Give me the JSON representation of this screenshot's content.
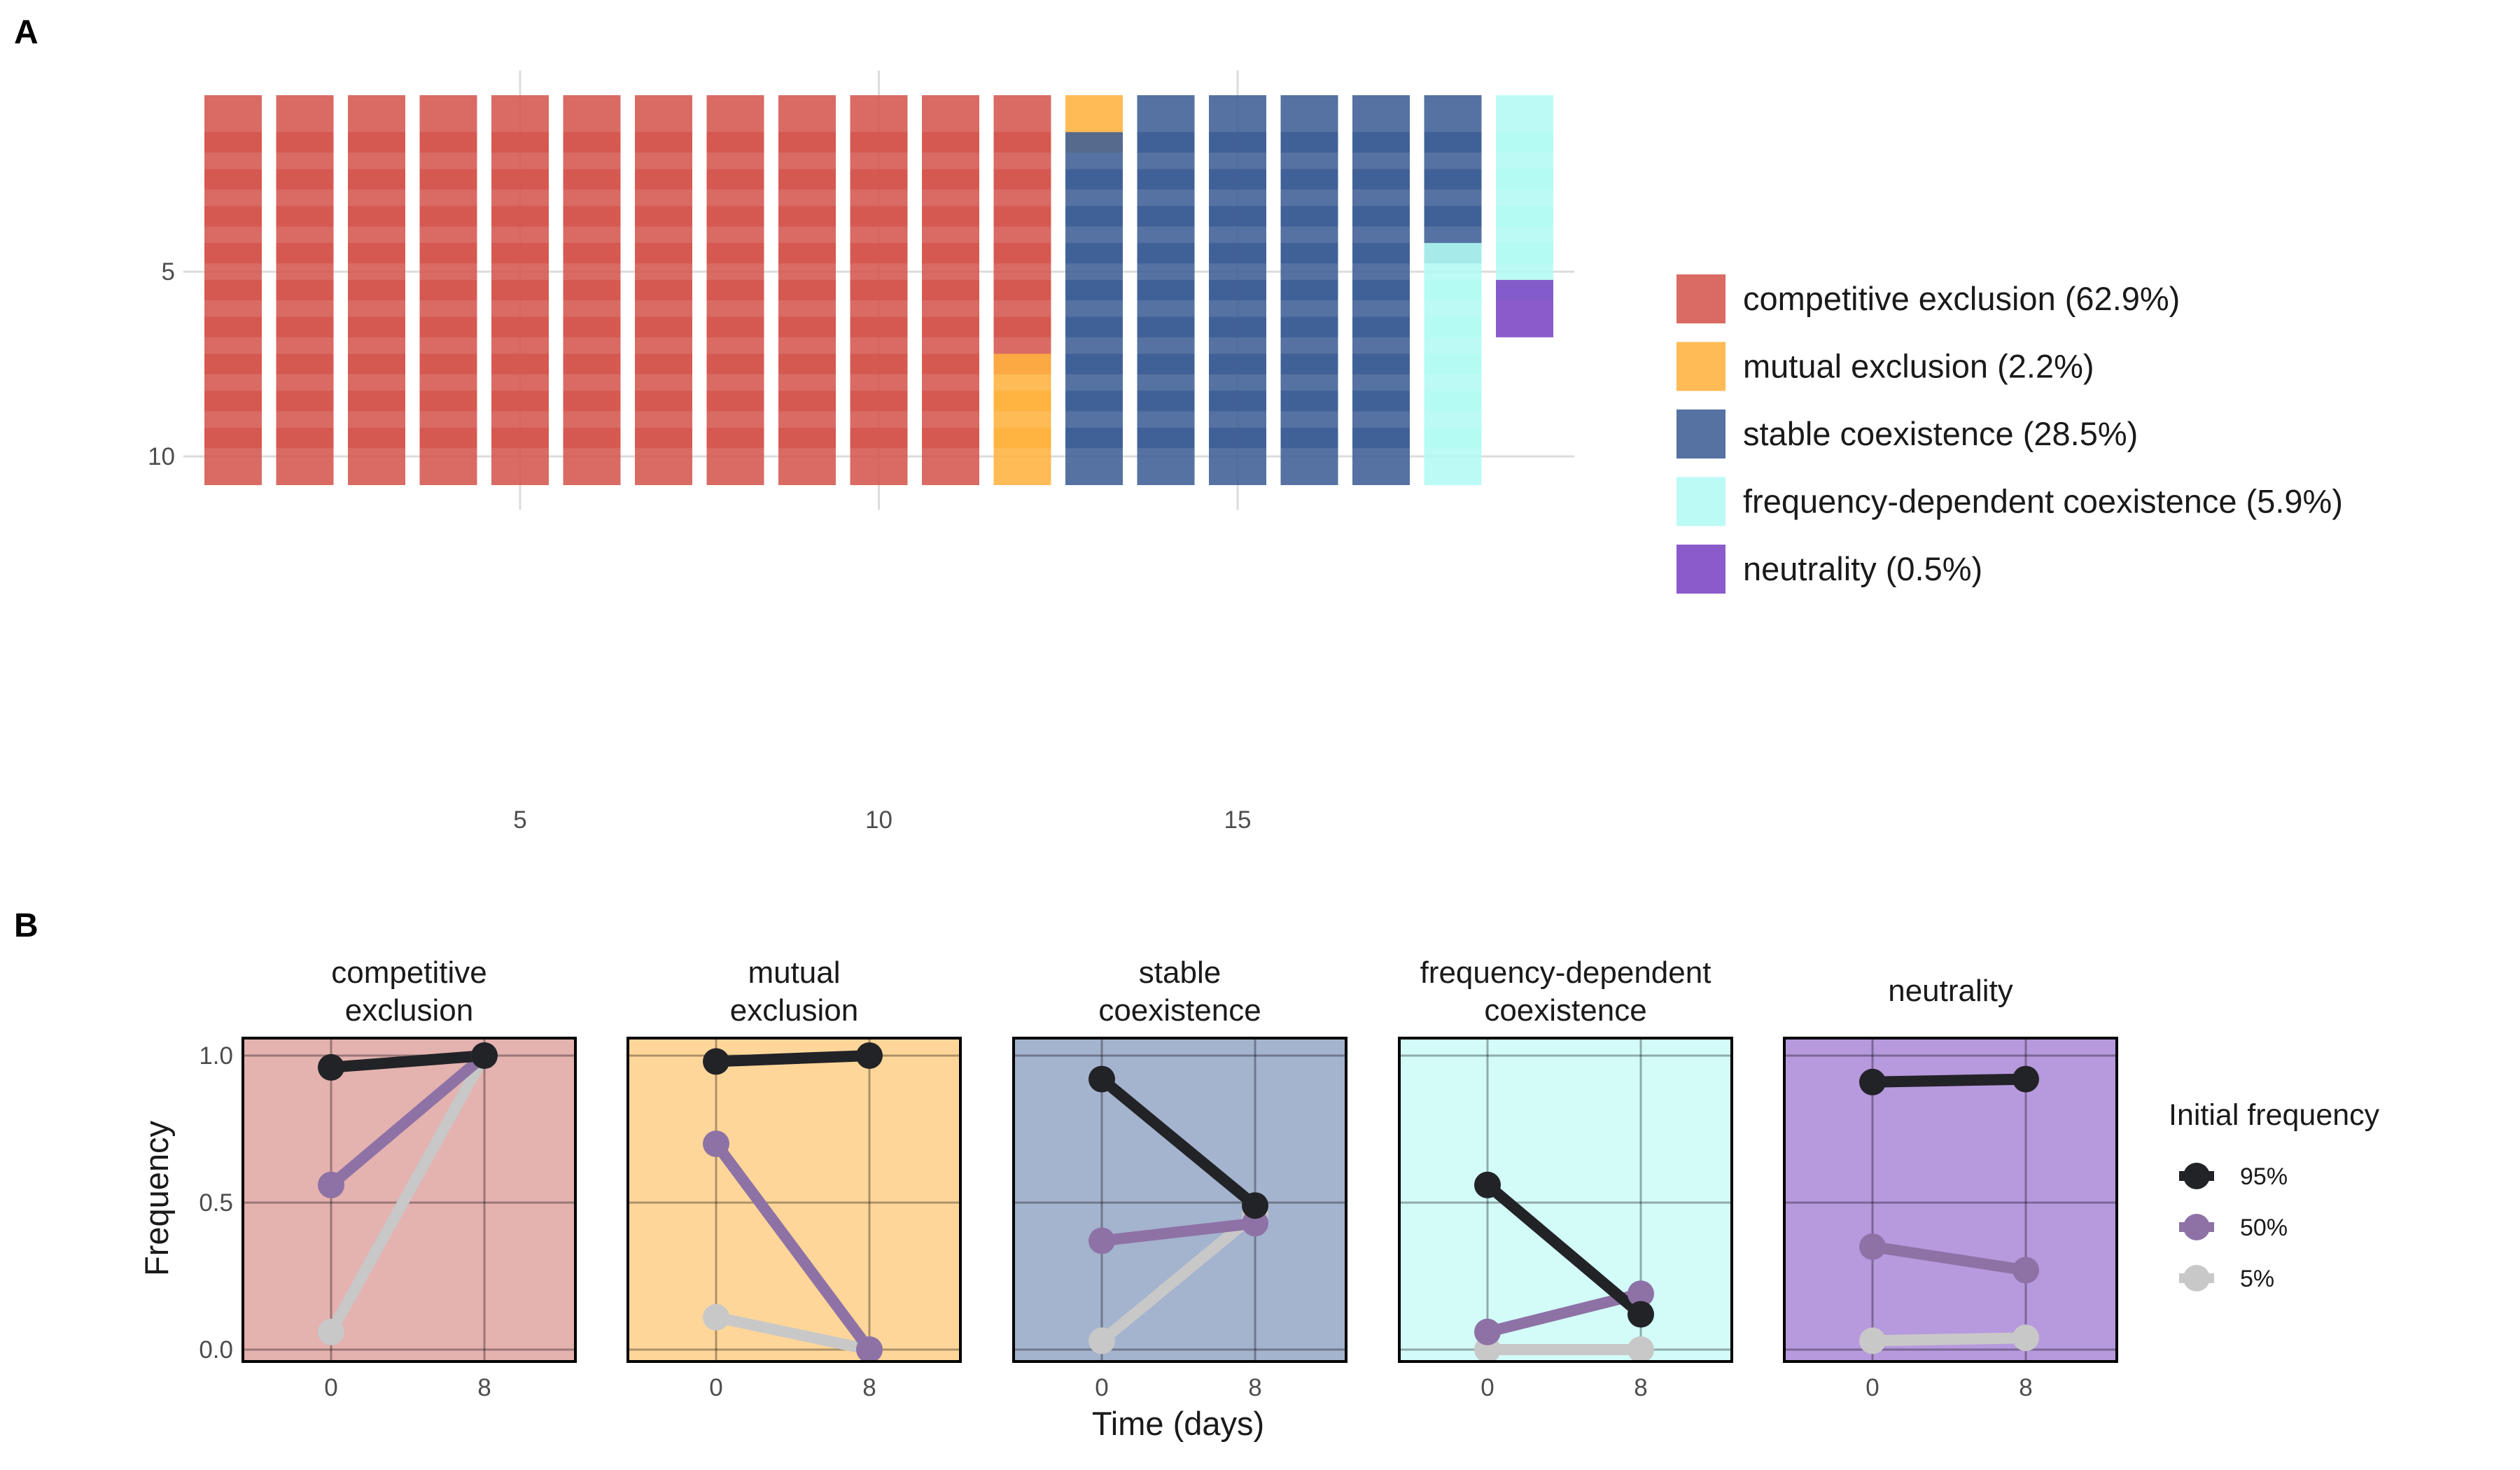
{
  "panel_labels": [
    "A",
    "B"
  ],
  "colors": {
    "competitive_exclusion": "#D4574F",
    "mutual_exclusion": "#FFB23E",
    "stable_coexistence": "#3E5F95",
    "frequency_dependent_coexistence": "#B3FAF4",
    "neutrality": "#7B44C4",
    "grid": "#DCDCDC",
    "initial_95": "#222327",
    "initial_50": "#8E72A6",
    "initial_5": "#C8C8C8"
  },
  "chart_data": [
    {
      "type": "waffle",
      "panel": "A",
      "x_ticks": [
        5,
        10,
        15
      ],
      "y_ticks": [
        5,
        10
      ],
      "xlim": [
        0.5,
        19.5
      ],
      "ylim": [
        0.5,
        10.5
      ],
      "grid": true,
      "legend_position": "right",
      "columns": [
        [
          "competitive exclusion",
          "competitive exclusion",
          "competitive exclusion",
          "competitive exclusion",
          "competitive exclusion",
          "competitive exclusion",
          "competitive exclusion",
          "competitive exclusion",
          "competitive exclusion",
          "competitive exclusion"
        ],
        [
          "competitive exclusion",
          "competitive exclusion",
          "competitive exclusion",
          "competitive exclusion",
          "competitive exclusion",
          "competitive exclusion",
          "competitive exclusion",
          "competitive exclusion",
          "competitive exclusion",
          "competitive exclusion"
        ],
        [
          "competitive exclusion",
          "competitive exclusion",
          "competitive exclusion",
          "competitive exclusion",
          "competitive exclusion",
          "competitive exclusion",
          "competitive exclusion",
          "competitive exclusion",
          "competitive exclusion",
          "competitive exclusion"
        ],
        [
          "competitive exclusion",
          "competitive exclusion",
          "competitive exclusion",
          "competitive exclusion",
          "competitive exclusion",
          "competitive exclusion",
          "competitive exclusion",
          "competitive exclusion",
          "competitive exclusion",
          "competitive exclusion"
        ],
        [
          "competitive exclusion",
          "competitive exclusion",
          "competitive exclusion",
          "competitive exclusion",
          "competitive exclusion",
          "competitive exclusion",
          "competitive exclusion",
          "competitive exclusion",
          "competitive exclusion",
          "competitive exclusion"
        ],
        [
          "competitive exclusion",
          "competitive exclusion",
          "competitive exclusion",
          "competitive exclusion",
          "competitive exclusion",
          "competitive exclusion",
          "competitive exclusion",
          "competitive exclusion",
          "competitive exclusion",
          "competitive exclusion"
        ],
        [
          "competitive exclusion",
          "competitive exclusion",
          "competitive exclusion",
          "competitive exclusion",
          "competitive exclusion",
          "competitive exclusion",
          "competitive exclusion",
          "competitive exclusion",
          "competitive exclusion",
          "competitive exclusion"
        ],
        [
          "competitive exclusion",
          "competitive exclusion",
          "competitive exclusion",
          "competitive exclusion",
          "competitive exclusion",
          "competitive exclusion",
          "competitive exclusion",
          "competitive exclusion",
          "competitive exclusion",
          "competitive exclusion"
        ],
        [
          "competitive exclusion",
          "competitive exclusion",
          "competitive exclusion",
          "competitive exclusion",
          "competitive exclusion",
          "competitive exclusion",
          "competitive exclusion",
          "competitive exclusion",
          "competitive exclusion",
          "competitive exclusion"
        ],
        [
          "competitive exclusion",
          "competitive exclusion",
          "competitive exclusion",
          "competitive exclusion",
          "competitive exclusion",
          "competitive exclusion",
          "competitive exclusion",
          "competitive exclusion",
          "competitive exclusion",
          "competitive exclusion"
        ],
        [
          "competitive exclusion",
          "competitive exclusion",
          "competitive exclusion",
          "competitive exclusion",
          "competitive exclusion",
          "competitive exclusion",
          "competitive exclusion",
          "competitive exclusion",
          "competitive exclusion",
          "competitive exclusion"
        ],
        [
          "competitive exclusion",
          "competitive exclusion",
          "competitive exclusion",
          "competitive exclusion",
          "competitive exclusion",
          "competitive exclusion",
          "competitive exclusion",
          "mutual exclusion",
          "mutual exclusion",
          "mutual exclusion"
        ],
        [
          "mutual exclusion",
          "stable coexistence",
          "stable coexistence",
          "stable coexistence",
          "stable coexistence",
          "stable coexistence",
          "stable coexistence",
          "stable coexistence",
          "stable coexistence",
          "stable coexistence"
        ],
        [
          "stable coexistence",
          "stable coexistence",
          "stable coexistence",
          "stable coexistence",
          "stable coexistence",
          "stable coexistence",
          "stable coexistence",
          "stable coexistence",
          "stable coexistence",
          "stable coexistence"
        ],
        [
          "stable coexistence",
          "stable coexistence",
          "stable coexistence",
          "stable coexistence",
          "stable coexistence",
          "stable coexistence",
          "stable coexistence",
          "stable coexistence",
          "stable coexistence",
          "stable coexistence"
        ],
        [
          "stable coexistence",
          "stable coexistence",
          "stable coexistence",
          "stable coexistence",
          "stable coexistence",
          "stable coexistence",
          "stable coexistence",
          "stable coexistence",
          "stable coexistence",
          "stable coexistence"
        ],
        [
          "stable coexistence",
          "stable coexistence",
          "stable coexistence",
          "stable coexistence",
          "stable coexistence",
          "stable coexistence",
          "stable coexistence",
          "stable coexistence",
          "stable coexistence",
          "stable coexistence"
        ],
        [
          "stable coexistence",
          "stable coexistence",
          "stable coexistence",
          "stable coexistence",
          "frequency-dependent coexistence",
          "frequency-dependent coexistence",
          "frequency-dependent coexistence",
          "frequency-dependent coexistence",
          "frequency-dependent coexistence",
          "frequency-dependent coexistence"
        ],
        [
          "frequency-dependent coexistence",
          "frequency-dependent coexistence",
          "frequency-dependent coexistence",
          "frequency-dependent coexistence",
          "frequency-dependent coexistence",
          "neutrality"
        ]
      ],
      "legend": [
        {
          "category": "competitive exclusion",
          "label": "competitive exclusion (62.9%)",
          "color_key": "competitive_exclusion"
        },
        {
          "category": "mutual exclusion",
          "label": "mutual exclusion (2.2%)",
          "color_key": "mutual_exclusion"
        },
        {
          "category": "stable coexistence",
          "label": "stable coexistence (28.5%)",
          "color_key": "stable_coexistence"
        },
        {
          "category": "frequency-dependent coexistence",
          "label": "frequency-dependent coexistence (5.9%)",
          "color_key": "frequency_dependent_coexistence"
        },
        {
          "category": "neutrality",
          "label": "neutrality (0.5%)",
          "color_key": "neutrality"
        }
      ]
    },
    {
      "type": "line",
      "panel": "B",
      "xlabel": "Time (days)",
      "ylabel": "Frequency",
      "x_ticks": [
        0,
        8
      ],
      "y_ticks": [
        "0.0",
        "0.5",
        "1.0"
      ],
      "xlim": [
        -3.5,
        12
      ],
      "ylim": [
        -0.05,
        1.05
      ],
      "legend_title": "Initial frequency",
      "legend_position": "right",
      "series_legend": [
        {
          "name": "95%",
          "color_key": "initial_95"
        },
        {
          "name": "50%",
          "color_key": "initial_50"
        },
        {
          "name": "5%",
          "color_key": "initial_5"
        }
      ],
      "facets": [
        {
          "title": [
            "competitive",
            "exclusion"
          ],
          "bg": "#E4B2AF",
          "series": [
            {
              "name": "95%",
              "x": [
                0,
                8
              ],
              "y": [
                0.96,
                1.0
              ]
            },
            {
              "name": "50%",
              "x": [
                0,
                8
              ],
              "y": [
                0.56,
                1.0
              ]
            },
            {
              "name": "5%",
              "x": [
                0,
                8
              ],
              "y": [
                0.06,
                1.0
              ]
            }
          ]
        },
        {
          "title": [
            "mutual",
            "exclusion"
          ],
          "bg": "#FFD699",
          "series": [
            {
              "name": "95%",
              "x": [
                0,
                8
              ],
              "y": [
                0.98,
                1.0
              ]
            },
            {
              "name": "50%",
              "x": [
                0,
                8
              ],
              "y": [
                0.7,
                0.0
              ]
            },
            {
              "name": "5%",
              "x": [
                0,
                8
              ],
              "y": [
                0.11,
                0.0
              ]
            }
          ]
        },
        {
          "title": [
            "stable",
            "coexistence"
          ],
          "bg": "#A4B3CE",
          "series": [
            {
              "name": "95%",
              "x": [
                0,
                8
              ],
              "y": [
                0.92,
                0.49
              ]
            },
            {
              "name": "50%",
              "x": [
                0,
                8
              ],
              "y": [
                0.37,
                0.43
              ]
            },
            {
              "name": "5%",
              "x": [
                0,
                8
              ],
              "y": [
                0.03,
                0.46
              ]
            }
          ]
        },
        {
          "title": [
            "frequency-dependent",
            "coexistence"
          ],
          "bg": "#D3FCF9",
          "series": [
            {
              "name": "95%",
              "x": [
                0,
                8
              ],
              "y": [
                0.56,
                0.12
              ]
            },
            {
              "name": "50%",
              "x": [
                0,
                8
              ],
              "y": [
                0.06,
                0.19
              ]
            },
            {
              "name": "5%",
              "x": [
                0,
                8
              ],
              "y": [
                0.0,
                0.0
              ]
            }
          ]
        },
        {
          "title": [
            "neutrality"
          ],
          "bg": "#B799DE",
          "series": [
            {
              "name": "95%",
              "x": [
                0,
                8
              ],
              "y": [
                0.91,
                0.92
              ]
            },
            {
              "name": "50%",
              "x": [
                0,
                8
              ],
              "y": [
                0.35,
                0.27
              ]
            },
            {
              "name": "5%",
              "x": [
                0,
                8
              ],
              "y": [
                0.03,
                0.04
              ]
            }
          ]
        }
      ]
    }
  ]
}
